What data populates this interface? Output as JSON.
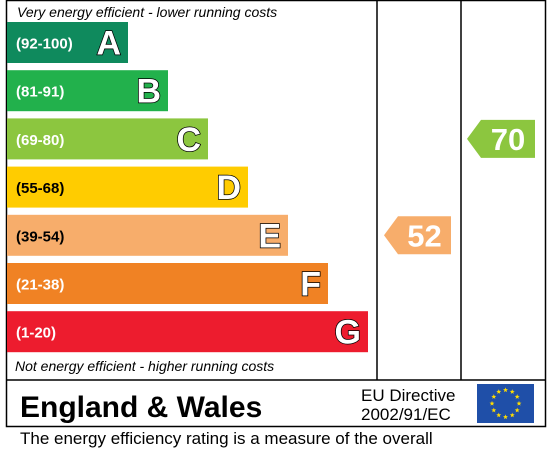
{
  "chart_data": {
    "type": "bar",
    "title": "",
    "top_note": "Very energy efficient - lower running costs",
    "bottom_note": "Not energy efficient - higher running costs",
    "bands": [
      {
        "range": "(92-100)",
        "letter": "A",
        "color": "#0f8a5d"
      },
      {
        "range": "(81-91)",
        "letter": "B",
        "color": "#22b14c"
      },
      {
        "range": "(69-80)",
        "letter": "C",
        "color": "#8cc63f"
      },
      {
        "range": "(55-68)",
        "letter": "D",
        "color": "#ffcc00"
      },
      {
        "range": "(39-54)",
        "letter": "E",
        "color": "#f7ad6b"
      },
      {
        "range": "(21-38)",
        "letter": "F",
        "color": "#f08224"
      },
      {
        "range": "(1-20)",
        "letter": "G",
        "color": "#ed1c2e"
      }
    ],
    "ratings": [
      {
        "column": "current",
        "value": 52,
        "band": "E",
        "color": "#f7ad6b"
      },
      {
        "column": "potential",
        "value": 70,
        "band": "C",
        "color": "#8cc63f"
      }
    ],
    "region": "England & Wales",
    "directive": [
      "EU Directive",
      "2002/91/EC"
    ],
    "flag_colors": {
      "field": "#1f4fa8",
      "stars": "#ffdd00"
    }
  },
  "caption": "The energy efficiency rating is a measure of the overall"
}
